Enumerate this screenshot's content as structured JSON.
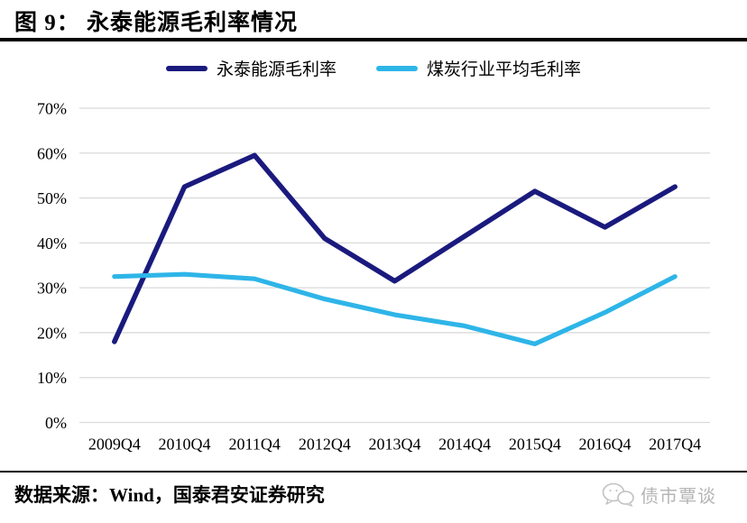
{
  "title": "图 9： 永泰能源毛利率情况",
  "colors": {
    "series_navy": "#1A1A7E",
    "series_cyan": "#2EB5E8",
    "grid": "#DADADA",
    "watermark_gray": "#B5B5B5"
  },
  "legend": {
    "items": [
      {
        "label": "永泰能源毛利率",
        "color": "#1A1A7E"
      },
      {
        "label": "煤炭行业平均毛利率",
        "color": "#2EB5E8"
      }
    ]
  },
  "chart_data": {
    "type": "line",
    "title": "图 9： 永泰能源毛利率情况",
    "categories": [
      "2009Q4",
      "2010Q4",
      "2011Q4",
      "2012Q4",
      "2013Q4",
      "2014Q4",
      "2015Q4",
      "2016Q4",
      "2017Q4"
    ],
    "series": [
      {
        "name": "永泰能源毛利率",
        "color": "#1A1A7E",
        "values": [
          18,
          52.5,
          59.5,
          41,
          31.5,
          41.5,
          51.5,
          43.5,
          52.5
        ]
      },
      {
        "name": "煤炭行业平均毛利率",
        "color": "#2EB5E8",
        "values": [
          32.5,
          33,
          32,
          27.5,
          24,
          21.5,
          17.5,
          24.5,
          32.5
        ]
      }
    ],
    "ylim": [
      0,
      70
    ],
    "ytick_step": 10,
    "ytick_labels": [
      "0%",
      "10%",
      "20%",
      "30%",
      "40%",
      "50%",
      "60%",
      "70%"
    ],
    "grid": true,
    "legend_position": "top"
  },
  "footer": {
    "source": "数据来源：Wind，国泰君安证券研究"
  },
  "watermark": {
    "text": "债市覃谈",
    "icon": "wechat-icon"
  }
}
